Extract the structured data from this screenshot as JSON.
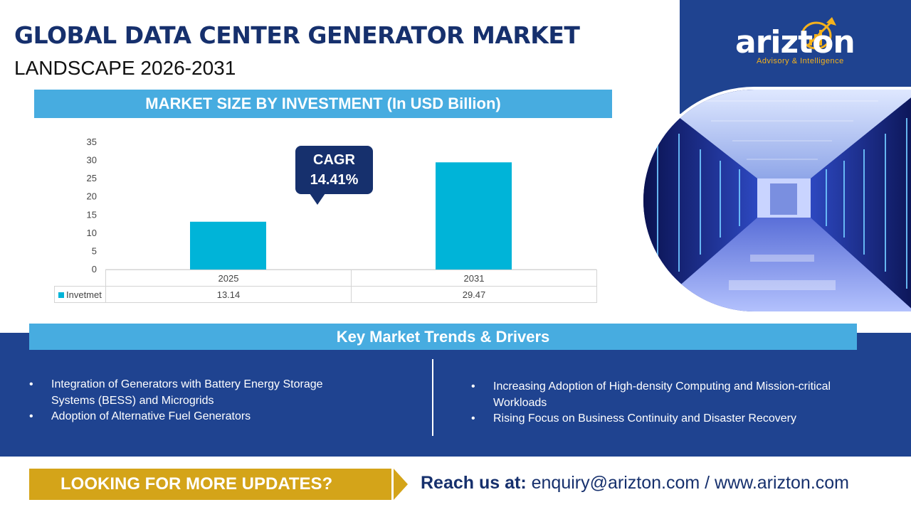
{
  "header": {
    "title": "GLOBAL DATA CENTER GENERATOR MARKET",
    "subtitle": "LANDSCAPE 2026-2031"
  },
  "logo": {
    "name": "arizton",
    "tagline": "Advisory & Intelligence"
  },
  "chart_header": "MARKET SIZE BY INVESTMENT (In USD Billion)",
  "cagr": {
    "label": "CAGR",
    "value": "14.41%"
  },
  "chart_data": {
    "type": "bar",
    "categories": [
      "2025",
      "2031"
    ],
    "series": [
      {
        "name": "Invetmet",
        "values": [
          13.14,
          29.47
        ]
      }
    ],
    "value_labels": [
      "13.14",
      "29.47"
    ],
    "yticks": [
      "0",
      "5",
      "10",
      "15",
      "20",
      "25",
      "30",
      "35"
    ],
    "ylim": [
      0,
      35
    ],
    "grid": false,
    "legend": "data-table",
    "bar_color": "#00b4d8"
  },
  "trends": {
    "header": "Key Market Trends & Drivers",
    "left": [
      "Integration of Generators with Battery Energy Storage Systems (BESS) and Microgrids",
      "Adoption of Alternative Fuel Generators"
    ],
    "right": [
      "Increasing Adoption of High-density Computing and Mission-critical Workloads",
      "Rising Focus on Business Continuity and Disaster Recovery"
    ]
  },
  "footer": {
    "cta": "LOOKING FOR MORE UPDATES?",
    "reach_label": "Reach us at:",
    "contact": "enquiry@arizton.com / www.arizton.com"
  },
  "colors": {
    "navy": "#16306d",
    "band_blue": "#1f4390",
    "header_blue": "#47ace0",
    "gold": "#d4a419",
    "bar": "#00b4d8"
  }
}
